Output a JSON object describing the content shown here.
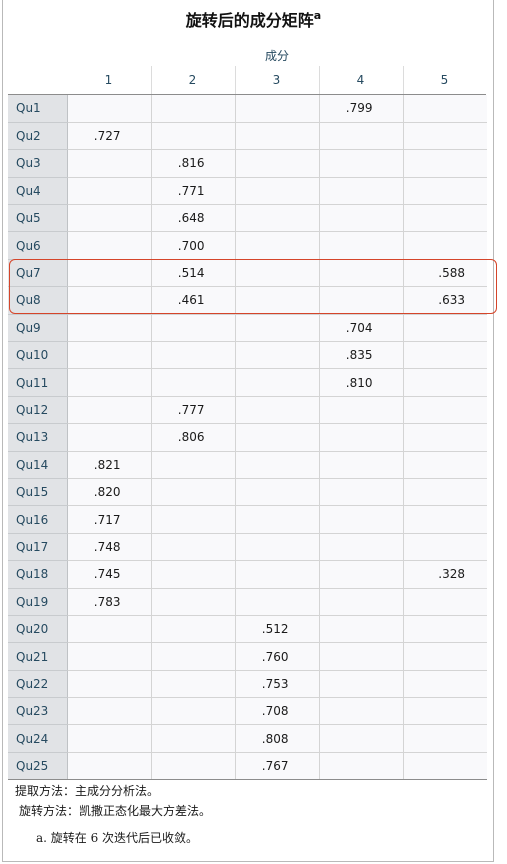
{
  "title": "旋转后的成分矩阵",
  "title_sup": "a",
  "group_header": "成分",
  "columns": [
    "1",
    "2",
    "3",
    "4",
    "5"
  ],
  "rows": [
    {
      "label": "Qu1",
      "values": [
        "",
        "",
        "",
        ".799",
        ""
      ]
    },
    {
      "label": "Qu2",
      "values": [
        ".727",
        "",
        "",
        "",
        ""
      ]
    },
    {
      "label": "Qu3",
      "values": [
        "",
        ".816",
        "",
        "",
        ""
      ]
    },
    {
      "label": "Qu4",
      "values": [
        "",
        ".771",
        "",
        "",
        ""
      ]
    },
    {
      "label": "Qu5",
      "values": [
        "",
        ".648",
        "",
        "",
        ""
      ]
    },
    {
      "label": "Qu6",
      "values": [
        "",
        ".700",
        "",
        "",
        ""
      ]
    },
    {
      "label": "Qu7",
      "values": [
        "",
        ".514",
        "",
        "",
        ".588"
      ]
    },
    {
      "label": "Qu8",
      "values": [
        "",
        ".461",
        "",
        "",
        ".633"
      ]
    },
    {
      "label": "Qu9",
      "values": [
        "",
        "",
        "",
        ".704",
        ""
      ]
    },
    {
      "label": "Qu10",
      "values": [
        "",
        "",
        "",
        ".835",
        ""
      ]
    },
    {
      "label": "Qu11",
      "values": [
        "",
        "",
        "",
        ".810",
        ""
      ]
    },
    {
      "label": "Qu12",
      "values": [
        "",
        ".777",
        "",
        "",
        ""
      ]
    },
    {
      "label": "Qu13",
      "values": [
        "",
        ".806",
        "",
        "",
        ""
      ]
    },
    {
      "label": "Qu14",
      "values": [
        ".821",
        "",
        "",
        "",
        ""
      ]
    },
    {
      "label": "Qu15",
      "values": [
        ".820",
        "",
        "",
        "",
        ""
      ]
    },
    {
      "label": "Qu16",
      "values": [
        ".717",
        "",
        "",
        "",
        ""
      ]
    },
    {
      "label": "Qu17",
      "values": [
        ".748",
        "",
        "",
        "",
        ""
      ]
    },
    {
      "label": "Qu18",
      "values": [
        ".745",
        "",
        "",
        "",
        ".328"
      ]
    },
    {
      "label": "Qu19",
      "values": [
        ".783",
        "",
        "",
        "",
        ""
      ]
    },
    {
      "label": "Qu20",
      "values": [
        "",
        "",
        ".512",
        "",
        ""
      ]
    },
    {
      "label": "Qu21",
      "values": [
        "",
        "",
        ".760",
        "",
        ""
      ]
    },
    {
      "label": "Qu22",
      "values": [
        "",
        "",
        ".753",
        "",
        ""
      ]
    },
    {
      "label": "Qu23",
      "values": [
        "",
        "",
        ".708",
        "",
        ""
      ]
    },
    {
      "label": "Qu24",
      "values": [
        "",
        "",
        ".808",
        "",
        ""
      ]
    },
    {
      "label": "Qu25",
      "values": [
        "",
        "",
        ".767",
        "",
        ""
      ]
    }
  ],
  "footnotes": {
    "extraction": "提取方法：主成分分析法。",
    "rotation": "旋转方法：凯撒正态化最大方差法。",
    "note_a": "a. 旋转在 6 次迭代后已收敛。"
  },
  "highlight_color": "#d5452a",
  "header_text_color": "#264a60",
  "rowhead_bg": "#e1e3e6"
}
